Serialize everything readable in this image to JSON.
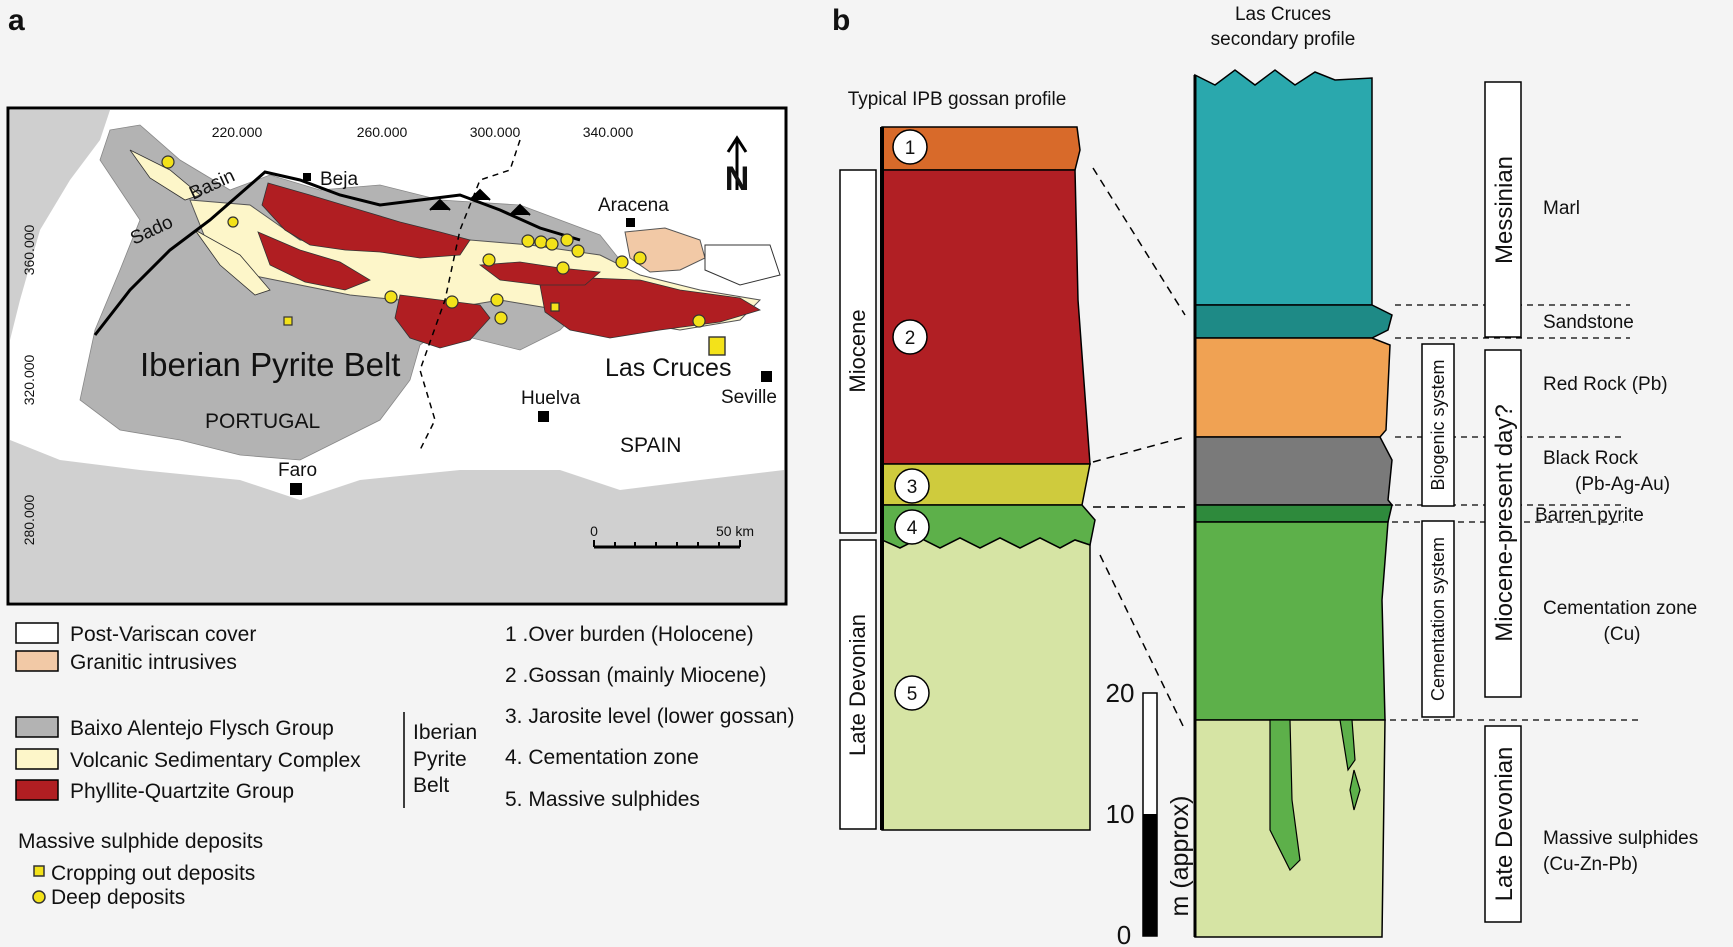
{
  "panel_a": {
    "letter": "a",
    "coords_top": [
      "220.000",
      "260.000",
      "300.000",
      "340.000"
    ],
    "coords_left": [
      "360.000",
      "320.000",
      "280.000"
    ],
    "places": {
      "sado": "Sado",
      "basin": "Basin",
      "beja": "Beja",
      "aracena": "Aracena",
      "iberian_pyrite_belt": "Iberian Pyrite Belt",
      "las_cruces": "Las Cruces",
      "seville": "Seville",
      "huelva": "Huelva",
      "portugal": "PORTUGAL",
      "spain": "SPAIN",
      "faro": "Faro"
    },
    "north": "N",
    "scale": {
      "start": "0",
      "end": "50 km"
    },
    "colors": {
      "cover": "#ffffff",
      "granitic": "#f2c9a6",
      "flysch": "#b3b3b3",
      "volcanic": "#fdf6c9",
      "phyllite": "#b01e22",
      "deposit": "#f3e21a"
    },
    "legend": {
      "post_variscan": "Post-Variscan cover",
      "granitic": "Granitic intrusives",
      "baixo": "Baixo Alentejo Flysch Group",
      "volcanic": "Volcanic Sedimentary Complex",
      "phyllite": "Phyllite-Quartzite Group",
      "ipb_line1": "Iberian",
      "ipb_line2": "Pyrite",
      "ipb_line3": "Belt",
      "deposits_title": "Massive sulphide deposits",
      "cropping": "Cropping out deposits",
      "deep": "Deep deposits"
    },
    "numbered": [
      "1 .Over burden (Holocene)",
      "2 .Gossan (mainly Miocene)",
      "3. Jarosite level (lower gossan)",
      "4. Cementation zone",
      "5. Massive sulphides"
    ]
  },
  "panel_b": {
    "letter": "b",
    "typical_title": "Typical IPB gossan profile",
    "las_cruces_title_1": "Las Cruces",
    "las_cruces_title_2": "secondary profile",
    "age_miocene": "Miocene",
    "age_late_devonian": "Late Devonian",
    "layer_numbers": [
      "1",
      "2",
      "3",
      "4",
      "5"
    ],
    "scale": {
      "label": "m (approx)",
      "ticks": [
        "20",
        "10",
        "0"
      ]
    },
    "systems": {
      "biogenic": "Biogenic system",
      "cementation": "Cementation system"
    },
    "right_ages": {
      "messinian": "Messinian",
      "miocene_present": "Miocene-present day?",
      "late_devonian": "Late Devonian"
    },
    "units": {
      "marl": "Marl",
      "sandstone": "Sandstone",
      "red_rock": "Red Rock (Pb)",
      "black_rock": "Black Rock",
      "black_rock_metals": "(Pb-Ag-Au)",
      "barren_pyrite": "Barren pyrite",
      "cementation_zone": "Cementation zone",
      "cementation_metal": "(Cu)",
      "massive_sulphides": "Massive sulphides",
      "massive_metals": "(Cu-Zn-Pb)"
    },
    "colors": {
      "overburden": "#d86a2a",
      "gossan": "#b11f24",
      "jarosite": "#cfcb3d",
      "cementation": "#5db04a",
      "massive": "#d6e4a4",
      "marl": "#2aa8ad",
      "sandstone": "#1e8a86",
      "red_rock": "#f0a253",
      "black_rock": "#7a7a7a",
      "barren": "#2e8a3c"
    }
  }
}
